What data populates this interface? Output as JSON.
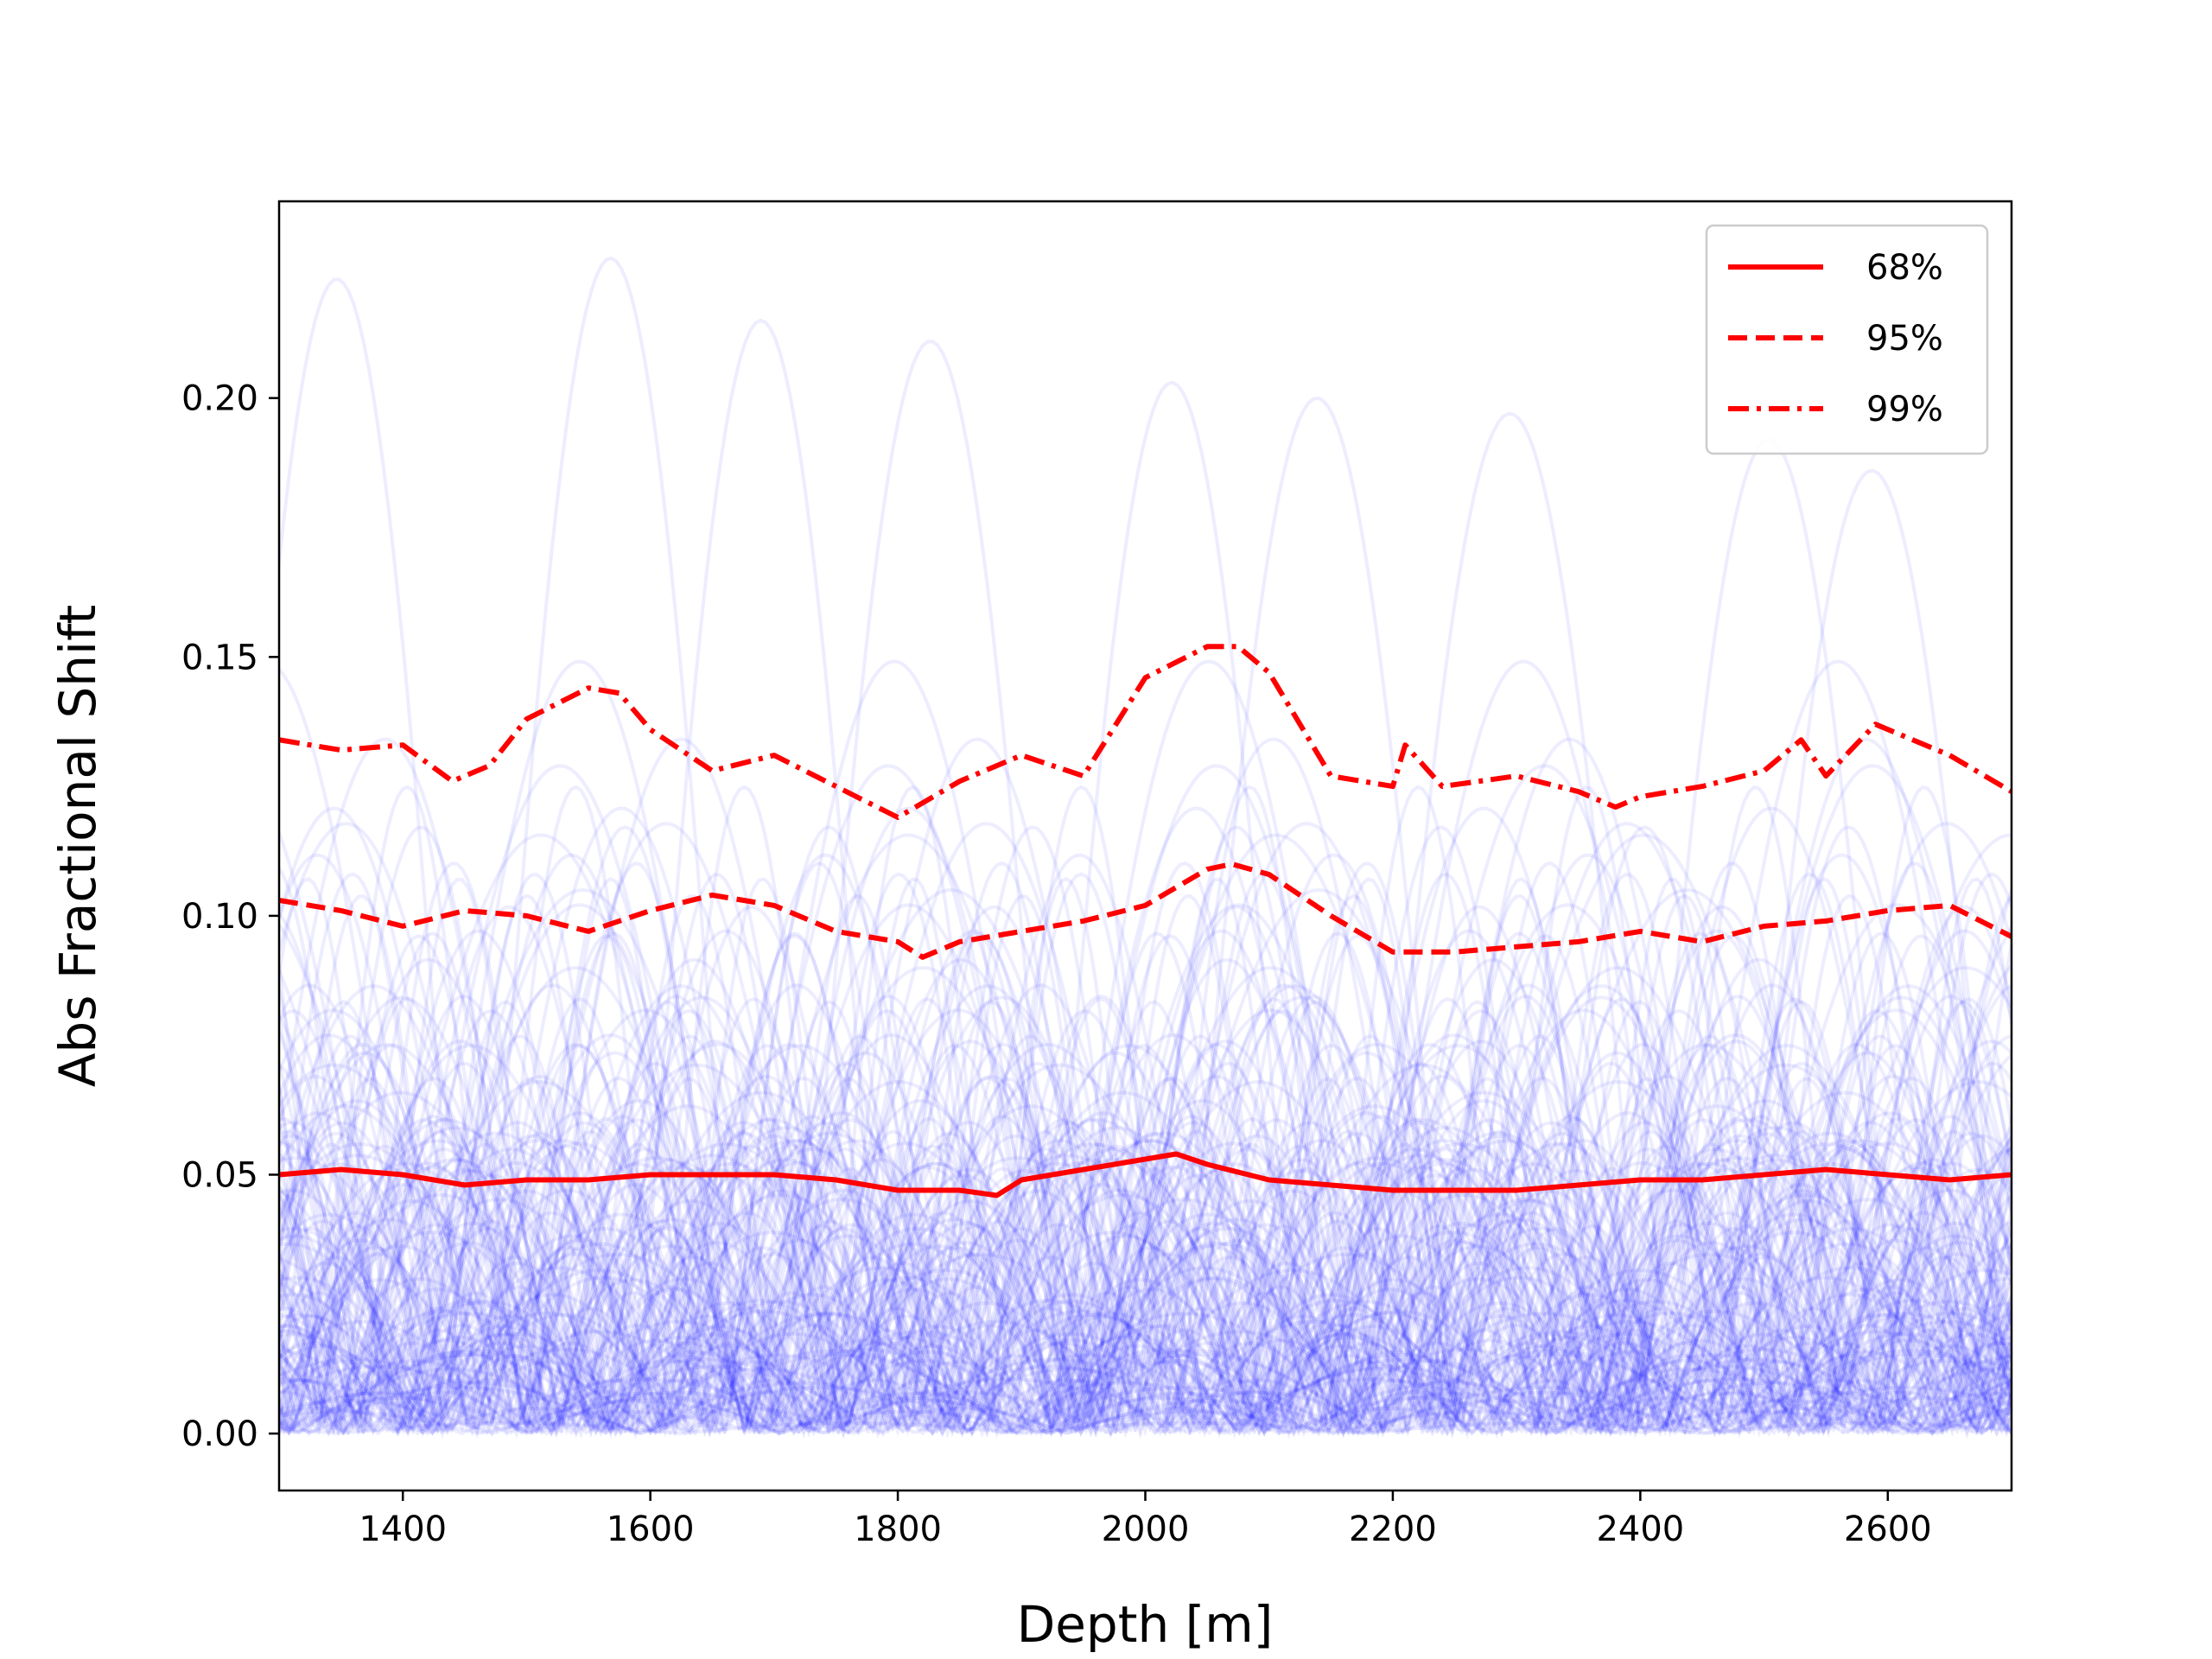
{
  "chart_data": {
    "type": "line",
    "title": "",
    "xlabel": "Depth [m]",
    "ylabel": "Abs Fractional Shift",
    "xlim": [
      1300,
      2700
    ],
    "ylim": [
      -0.011,
      0.238
    ],
    "xticks": [
      1400,
      1600,
      1800,
      2000,
      2200,
      2400,
      2600
    ],
    "xtick_labels": [
      "1400",
      "1600",
      "1800",
      "2000",
      "2200",
      "2400",
      "2600"
    ],
    "yticks": [
      0.0,
      0.05,
      0.1,
      0.15,
      0.2
    ],
    "ytick_labels": [
      "0.00",
      "0.05",
      "0.10",
      "0.15",
      "0.20"
    ],
    "grid": false,
    "legend_position": "top-right",
    "background_ensemble": {
      "description_visible": false,
      "color": "#0000ff",
      "opacity": 0.07,
      "max_values_visible": [
        0.223,
        0.227,
        0.215,
        0.211,
        0.203,
        0.2,
        0.197,
        0.192,
        0.186
      ]
    },
    "series": [
      {
        "name": "68%",
        "color": "#ff0000",
        "linestyle": "solid",
        "x": [
          1300,
          1350,
          1400,
          1450,
          1500,
          1550,
          1600,
          1650,
          1700,
          1750,
          1800,
          1850,
          1880,
          1900,
          1950,
          2000,
          2025,
          2050,
          2100,
          2150,
          2200,
          2250,
          2300,
          2350,
          2400,
          2450,
          2500,
          2550,
          2600,
          2650,
          2700
        ],
        "values": [
          0.05,
          0.051,
          0.05,
          0.048,
          0.049,
          0.049,
          0.05,
          0.05,
          0.05,
          0.049,
          0.047,
          0.047,
          0.046,
          0.049,
          0.051,
          0.053,
          0.054,
          0.052,
          0.049,
          0.048,
          0.047,
          0.047,
          0.047,
          0.048,
          0.049,
          0.049,
          0.05,
          0.051,
          0.05,
          0.049,
          0.05
        ]
      },
      {
        "name": "95%",
        "color": "#ff0000",
        "linestyle": "dashed",
        "x": [
          1300,
          1350,
          1400,
          1450,
          1500,
          1550,
          1600,
          1650,
          1700,
          1750,
          1800,
          1820,
          1850,
          1900,
          1950,
          2000,
          2050,
          2070,
          2100,
          2150,
          2200,
          2250,
          2300,
          2350,
          2400,
          2450,
          2500,
          2550,
          2600,
          2650,
          2700
        ],
        "values": [
          0.103,
          0.101,
          0.098,
          0.101,
          0.1,
          0.097,
          0.101,
          0.104,
          0.102,
          0.097,
          0.095,
          0.092,
          0.095,
          0.097,
          0.099,
          0.102,
          0.109,
          0.11,
          0.108,
          0.1,
          0.093,
          0.093,
          0.094,
          0.095,
          0.097,
          0.095,
          0.098,
          0.099,
          0.101,
          0.102,
          0.096
        ]
      },
      {
        "name": "99%",
        "color": "#ff0000",
        "linestyle": "dashdot",
        "x": [
          1300,
          1325,
          1350,
          1400,
          1440,
          1470,
          1500,
          1550,
          1575,
          1600,
          1650,
          1700,
          1750,
          1800,
          1850,
          1900,
          1950,
          2000,
          2050,
          2075,
          2100,
          2150,
          2200,
          2210,
          2240,
          2300,
          2350,
          2380,
          2400,
          2450,
          2500,
          2530,
          2550,
          2590,
          2650,
          2700
        ],
        "values": [
          0.134,
          0.133,
          0.132,
          0.133,
          0.126,
          0.129,
          0.138,
          0.144,
          0.143,
          0.136,
          0.128,
          0.131,
          0.125,
          0.119,
          0.126,
          0.131,
          0.127,
          0.146,
          0.152,
          0.152,
          0.147,
          0.127,
          0.125,
          0.133,
          0.125,
          0.127,
          0.124,
          0.121,
          0.123,
          0.125,
          0.128,
          0.134,
          0.127,
          0.137,
          0.131,
          0.124
        ]
      }
    ]
  }
}
